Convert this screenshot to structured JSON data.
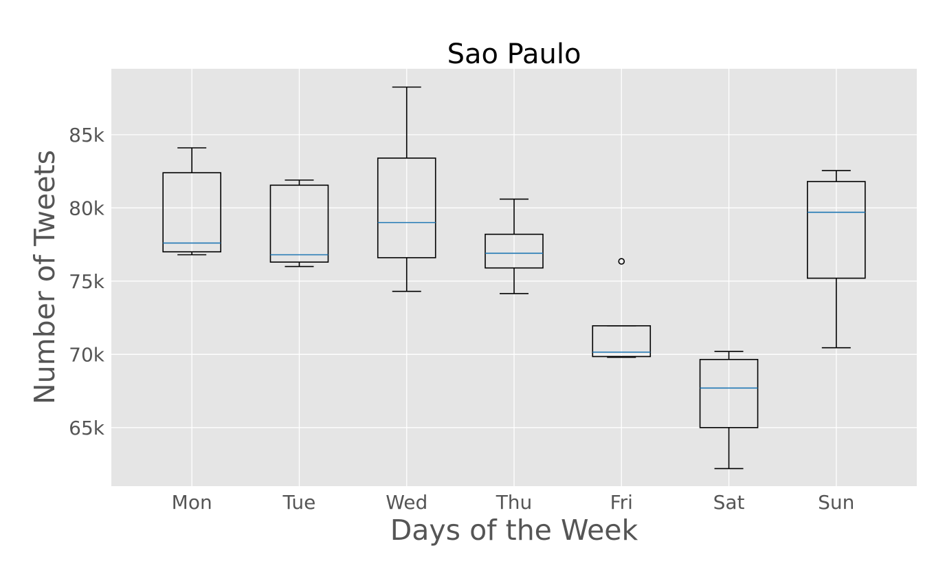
{
  "chart_data": {
    "type": "box",
    "title": "Sao Paulo",
    "xlabel": "Days of the Week",
    "ylabel": "Number of Tweets",
    "ylim": [
      61000,
      89500
    ],
    "grid": true,
    "y_ticks": [
      {
        "value": 65000,
        "label": "65k"
      },
      {
        "value": 70000,
        "label": "70k"
      },
      {
        "value": 75000,
        "label": "75k"
      },
      {
        "value": 80000,
        "label": "80k"
      },
      {
        "value": 85000,
        "label": "85k"
      }
    ],
    "categories": [
      "Mon",
      "Tue",
      "Wed",
      "Thu",
      "Fri",
      "Sat",
      "Sun"
    ],
    "boxes": [
      {
        "whisker_low": 76800,
        "q1": 77000,
        "median": 77600,
        "q3": 82400,
        "whisker_high": 84100,
        "outliers": []
      },
      {
        "whisker_low": 76000,
        "q1": 76300,
        "median": 76800,
        "q3": 81550,
        "whisker_high": 81900,
        "outliers": []
      },
      {
        "whisker_low": 74300,
        "q1": 76600,
        "median": 79000,
        "q3": 83400,
        "whisker_high": 88250,
        "outliers": []
      },
      {
        "whisker_low": 74150,
        "q1": 75900,
        "median": 76900,
        "q3": 78200,
        "whisker_high": 80600,
        "outliers": []
      },
      {
        "whisker_low": 69800,
        "q1": 69850,
        "median": 70150,
        "q3": 71950,
        "whisker_high": 71950,
        "outliers": [
          76350
        ]
      },
      {
        "whisker_low": 62200,
        "q1": 65000,
        "median": 67700,
        "q3": 69650,
        "whisker_high": 70200,
        "outliers": []
      },
      {
        "whisker_low": 70450,
        "q1": 75200,
        "median": 79700,
        "q3": 81800,
        "whisker_high": 82550,
        "outliers": []
      }
    ],
    "colors": {
      "plot_background": "#e5e5e5",
      "grid": "#ffffff",
      "box": "#000000",
      "median": "#1f77b4",
      "tick_text": "#555555"
    }
  }
}
